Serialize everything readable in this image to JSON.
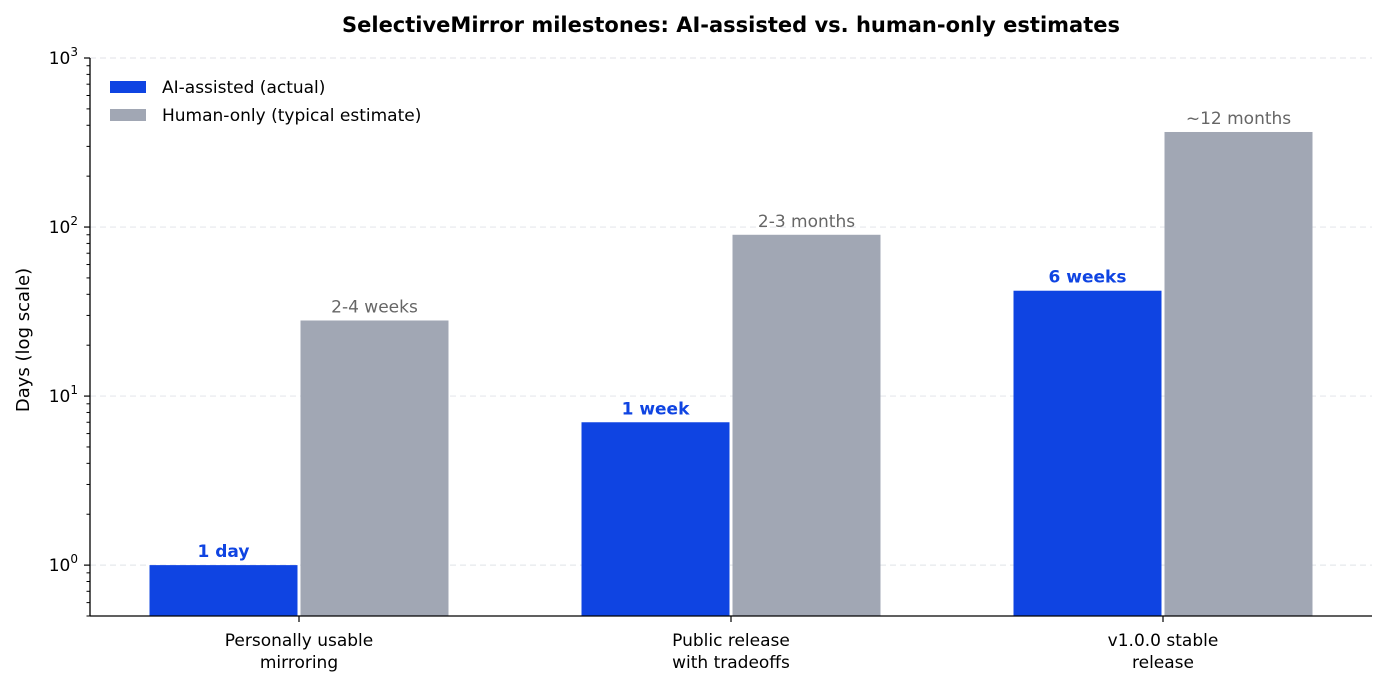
{
  "chart_data": {
    "type": "bar",
    "title": "SelectiveMirror milestones: AI-assisted vs. human-only estimates",
    "xlabel": "",
    "ylabel": "Days (log scale)",
    "yscale": "log",
    "ylim": [
      0.5,
      1000
    ],
    "yticks": [
      {
        "value": 1,
        "base": "10",
        "exp": "0"
      },
      {
        "value": 10,
        "base": "10",
        "exp": "1"
      },
      {
        "value": 100,
        "base": "10",
        "exp": "2"
      },
      {
        "value": 1000,
        "base": "10",
        "exp": "3"
      }
    ],
    "grid": "y-major-dashed",
    "legend_position": "top-left",
    "categories": [
      [
        "Personally usable",
        "mirroring"
      ],
      [
        "Public release",
        "with tradeoffs"
      ],
      [
        "v1.0.0 stable",
        "release"
      ]
    ],
    "series": [
      {
        "name": "AI-assisted (actual)",
        "color": "#0f44e2",
        "values": [
          1,
          7,
          42
        ],
        "labels": [
          "1 day",
          "1 week",
          "6 weeks"
        ]
      },
      {
        "name": "Human-only (typical estimate)",
        "color": "#a1a7b4",
        "values": [
          28,
          90,
          365
        ],
        "labels": [
          "2-4 weeks",
          "2-3 months",
          "~12 months"
        ]
      }
    ],
    "label_colors": {
      "ai": "#0f44e2",
      "human": "#666666"
    }
  }
}
